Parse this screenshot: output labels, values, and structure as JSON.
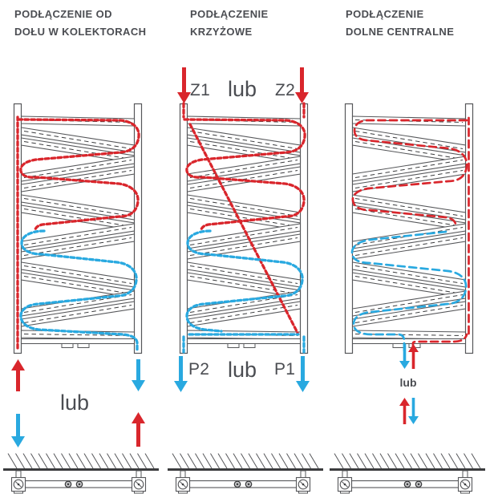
{
  "colors": {
    "supply_red": "#d9262c",
    "return_blue": "#29a9e0",
    "outline_gray": "#56575a",
    "dark_gray": "#3b3c3e",
    "text_gray": "#4b4d52"
  },
  "diagrams": [
    {
      "key": "bottom_collectors",
      "title_line1": "PODŁĄCZENIE OD",
      "title_line2": "DOŁU W KOLEKTORACH",
      "or_label": "lub",
      "connection_options": [
        {
          "left": {
            "color": "red",
            "dir": "up"
          },
          "right": {
            "color": "blue",
            "dir": "down"
          }
        },
        {
          "left": {
            "color": "blue",
            "dir": "down"
          },
          "right": {
            "color": "red",
            "dir": "up"
          }
        }
      ]
    },
    {
      "key": "cross",
      "title_line1": "PODŁĄCZENIE",
      "title_line2": "KRZYŻOWE",
      "top_or_label": "lub",
      "bottom_or_label": "lub",
      "supply_labels": {
        "left": "Z1",
        "right": "Z2"
      },
      "return_labels": {
        "left": "P2",
        "right": "P1"
      },
      "top_arrows": [
        {
          "color": "red",
          "dir": "down"
        },
        {
          "color": "red",
          "dir": "down"
        }
      ],
      "bottom_arrows": [
        {
          "color": "blue",
          "dir": "down"
        },
        {
          "color": "blue",
          "dir": "down"
        }
      ]
    },
    {
      "key": "bottom_center",
      "title_line1": "PODŁĄCZENIE",
      "title_line2": "DOLNE CENTRALNE",
      "or_label": "lub",
      "connection_options": [
        {
          "left": {
            "color": "blue",
            "dir": "down"
          },
          "right": {
            "color": "red",
            "dir": "up"
          }
        },
        {
          "left": {
            "color": "red",
            "dir": "up"
          },
          "right": {
            "color": "blue",
            "dir": "down"
          }
        }
      ]
    }
  ]
}
